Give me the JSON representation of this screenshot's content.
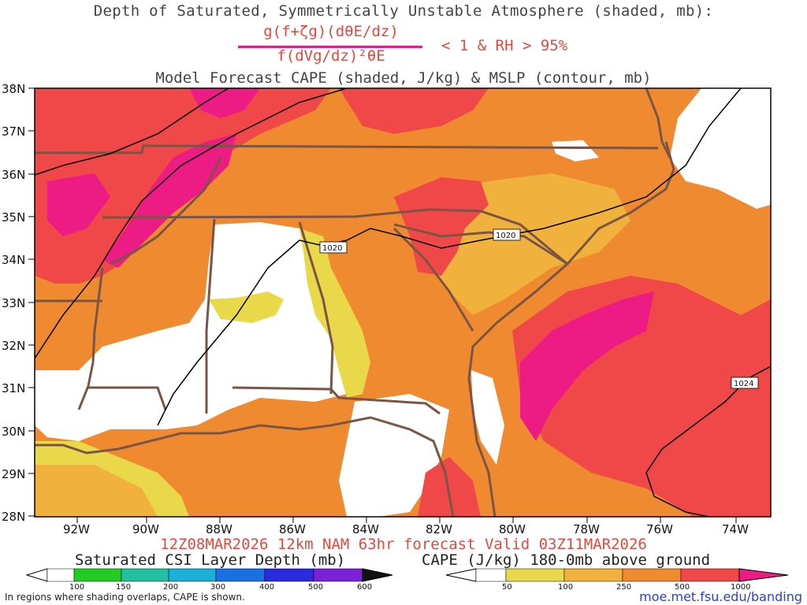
{
  "header": {
    "title_line1": "Depth of Saturated, Symmetrically Unstable Atmosphere (shaded, mb):",
    "eq_numerator": "g(f+ζg)(dθE/dz)",
    "eq_denominator": "f(dVg/dz)²θE",
    "eq_condition": "< 1 & RH > 95%",
    "title_line3": "Model Forecast CAPE (shaded, J/kg) & MSLP (contour, mb)"
  },
  "map": {
    "lat_labels": [
      "38N",
      "37N",
      "36N",
      "35N",
      "34N",
      "33N",
      "32N",
      "31N",
      "30N",
      "29N",
      "28N"
    ],
    "lon_labels": [
      "92W",
      "90W",
      "88W",
      "86W",
      "84W",
      "82W",
      "80W",
      "78W",
      "76W",
      "74W"
    ],
    "isobar_labels": [
      "1020",
      "1020",
      "1024"
    ],
    "colors": {
      "cape_50": "#e8d84a",
      "cape_100": "#f0b23c",
      "cape_250": "#f08a30",
      "cape_500": "#f04848",
      "cape_1000": "#ec1c84",
      "border": "#7a5444",
      "isobar": "#000000"
    }
  },
  "footer": {
    "valid_line": "12Z08MAR2026  12km NAM 63hr forecast Valid 03Z11MAR2026",
    "csi_title": "Saturated CSI Layer Depth (mb)",
    "csi_ticks": [
      "100",
      "150",
      "200",
      "300",
      "400",
      "500",
      "600"
    ],
    "cape_title": "CAPE (J/kg) 180-0mb above ground",
    "cape_ticks": [
      "50",
      "100",
      "250",
      "500",
      "1000"
    ],
    "note": "In regions where shading overlaps, CAPE is shown.",
    "credit": "moe.met.fsu.edu/banding"
  }
}
